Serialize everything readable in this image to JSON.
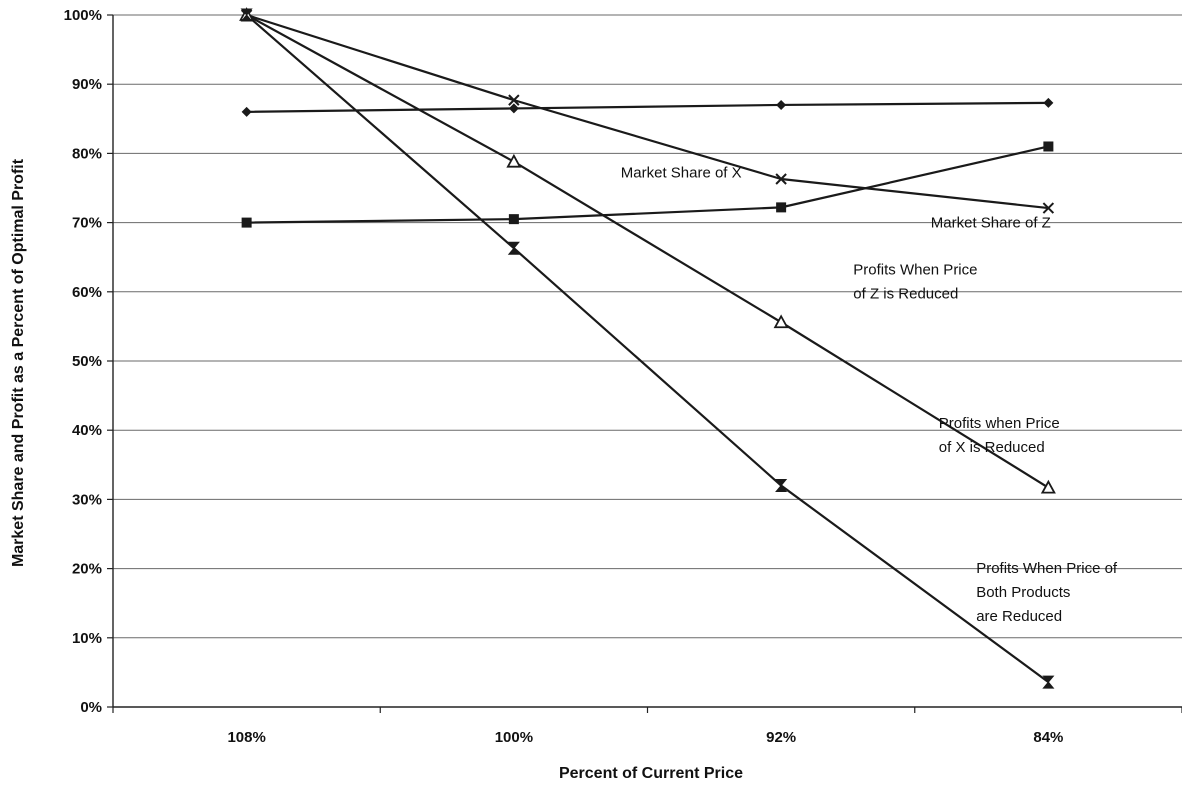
{
  "chart_data": {
    "type": "line",
    "title": "",
    "xlabel": "Percent of Current Price",
    "ylabel": "Market Share and Profit as a Percent of Optimal Profit",
    "categories": [
      "108%",
      "100%",
      "92%",
      "84%"
    ],
    "ylim": [
      0,
      100
    ],
    "y_ticks": [
      0,
      10,
      20,
      30,
      40,
      50,
      60,
      70,
      80,
      90,
      100
    ],
    "y_tick_labels": [
      "0%",
      "10%",
      "20%",
      "30%",
      "40%",
      "50%",
      "60%",
      "70%",
      "80%",
      "90%",
      "100%"
    ],
    "grid": "horizontal",
    "legend": "none (direct annotations)",
    "line_color": "#1a1a1a",
    "series": [
      {
        "values": [
          86,
          86.5,
          87,
          87.3
        ],
        "marker": "diamond"
      },
      {
        "values": [
          70,
          70.5,
          72.2,
          81
        ],
        "marker": "square"
      },
      {
        "values": [
          100,
          87.7,
          76.3,
          72.1
        ],
        "marker": "x"
      },
      {
        "values": [
          100,
          78.8,
          55.6,
          31.7
        ],
        "marker": "triangle-open"
      },
      {
        "values": [
          100,
          66.3,
          32,
          3.6
        ],
        "marker": "hourglass"
      }
    ],
    "annotations": [
      {
        "lines": [
          "Market Share of X"
        ],
        "category_index": 1.4,
        "y": 76.5
      },
      {
        "lines": [
          "Market Share of Z"
        ],
        "category_index": 2.56,
        "y": 69.3
      },
      {
        "lines": [
          "Profits When Price",
          " of Z  is Reduced"
        ],
        "category_index": 2.27,
        "y": 62.5
      },
      {
        "lines": [
          "Profits when Price",
          "of X is Reduced"
        ],
        "category_index": 2.59,
        "y": 40.3
      },
      {
        "lines": [
          "Profits When Price of",
          "Both Products",
          "are Reduced"
        ],
        "category_index": 2.73,
        "y": 19.4
      }
    ]
  }
}
